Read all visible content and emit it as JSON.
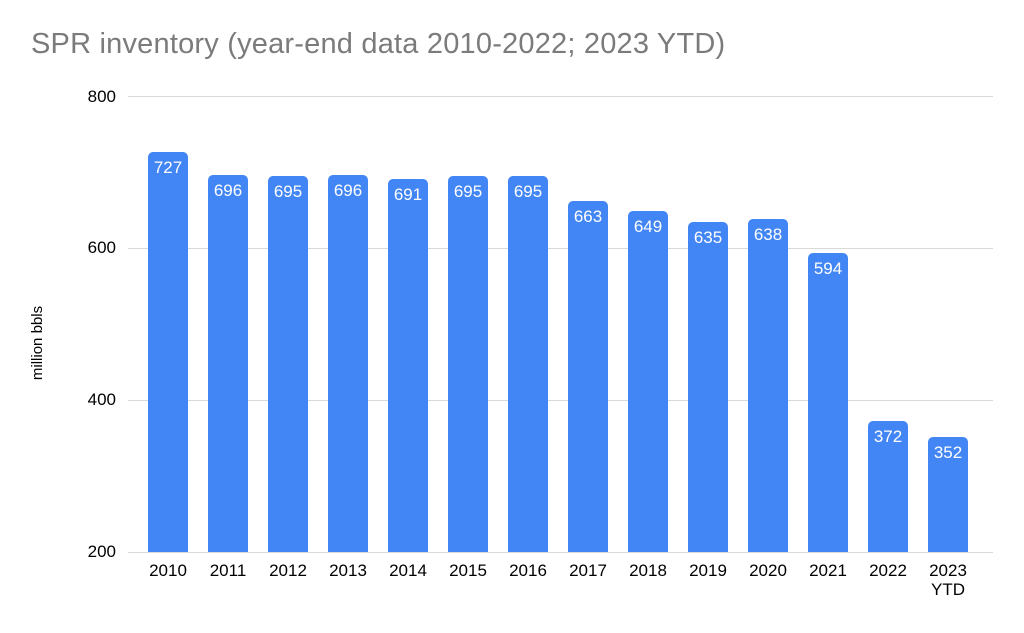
{
  "page": {
    "background": "#ffffff"
  },
  "chart_data": {
    "type": "bar",
    "title": "SPR inventory (year-end data 2010-2022; 2023 YTD)",
    "xlabel": "",
    "ylabel": "million bbls",
    "categories": [
      "2010",
      "2011",
      "2012",
      "2013",
      "2014",
      "2015",
      "2016",
      "2017",
      "2018",
      "2019",
      "2020",
      "2021",
      "2022",
      "2023\nYTD"
    ],
    "values": [
      727,
      696,
      695,
      696,
      691,
      695,
      695,
      663,
      649,
      635,
      638,
      594,
      372,
      352
    ],
    "data_labels": [
      727,
      696,
      695,
      696,
      691,
      695,
      695,
      663,
      649,
      635,
      638,
      594,
      372,
      352
    ],
    "data_label_position": "inside-top",
    "ylim": [
      200,
      800
    ],
    "yticks": [
      200,
      400,
      600,
      800
    ],
    "grid": true,
    "legend_position": "none",
    "colors": {
      "bar": "#4285f4",
      "bar_label": "#ffffff",
      "gridline": "#d9d9d9",
      "axis_text": "#000000",
      "title_text": "#7b7b7b"
    }
  }
}
